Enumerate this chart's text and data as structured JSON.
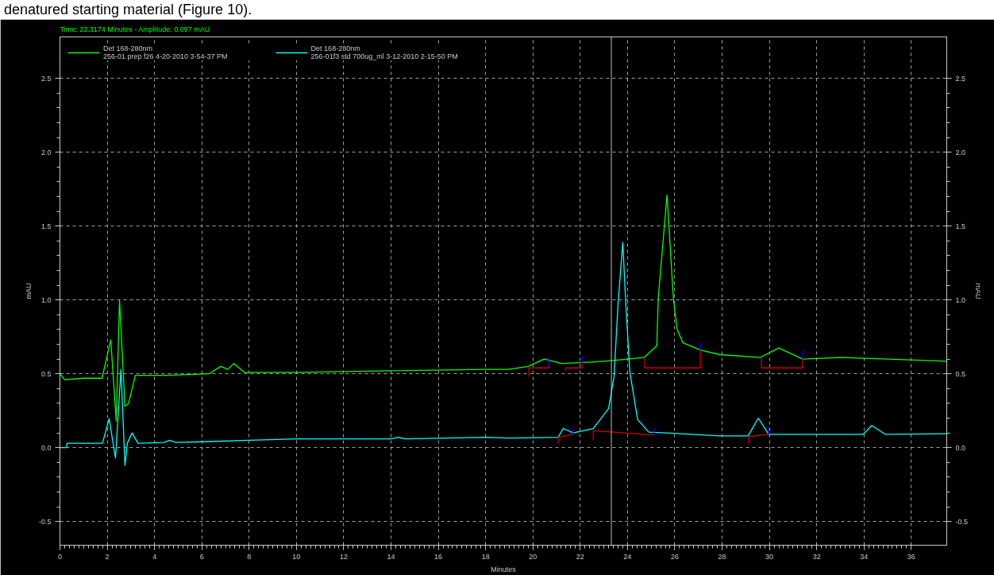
{
  "chart_data": {
    "type": "line",
    "annotations": [
      "denatured starting material (Figure 10).",
      "Time:  23.3174 Minutes - Amplitude:  0.097 mAU"
    ],
    "xlabel": "Minutes",
    "ylabel": "mAU",
    "y2label": "mAU",
    "xlim": [
      0,
      37.5
    ],
    "ylim": [
      -0.66,
      2.78
    ],
    "y2lim": [
      -0.66,
      2.78
    ],
    "xticks": [
      0,
      2,
      4,
      6,
      8,
      10,
      12,
      14,
      16,
      18,
      20,
      22,
      24,
      26,
      28,
      30,
      32,
      34,
      36
    ],
    "yticks": [
      -0.5,
      {
        "value": 0,
        "label": "0.0"
      },
      0.5,
      {
        "value": 1,
        "label": "1.0"
      },
      1.5,
      {
        "value": 2,
        "label": "2.0"
      },
      2.5
    ],
    "y2ticks": [
      -0.5,
      {
        "value": 0,
        "label": "0.0"
      },
      0.5,
      {
        "value": 1,
        "label": "1.0"
      },
      1.5,
      {
        "value": 2,
        "label": "2.0"
      },
      2.5
    ],
    "grid": true,
    "legend": "top left",
    "line_style": "solid",
    "ref_lines": [
      {
        "axis": "x",
        "value": 23.3174,
        "color": "#c0c0c0"
      }
    ],
    "series": [
      {
        "name": "Det 168-280nm\n256-01 prep f26 4-20-2010 3-54-37 PM",
        "color": "#00ff00",
        "x": [
          0,
          0.2,
          1.0,
          1.78,
          2.15,
          2.38,
          2.52,
          2.75,
          2.9,
          3.19,
          4.5,
          6.3,
          6.8,
          7.1,
          7.35,
          7.8,
          10,
          14,
          18,
          18.96,
          19.8,
          20.47,
          21.2,
          22.5,
          23.4,
          24.7,
          25.24,
          25.3,
          25.67,
          25.94,
          26.1,
          26.34,
          27.1,
          27.9,
          29.6,
          30.4,
          31.4,
          33.05,
          35,
          37.5
        ],
        "values": [
          0.5,
          0.46,
          0.47,
          0.47,
          0.73,
          0.18,
          1.0,
          0.28,
          0.3,
          0.49,
          0.49,
          0.5,
          0.55,
          0.53,
          0.57,
          0.51,
          0.51,
          0.52,
          0.53,
          0.53,
          0.55,
          0.6,
          0.57,
          0.58,
          0.59,
          0.61,
          0.69,
          1.01,
          1.71,
          1.01,
          0.8,
          0.71,
          0.66,
          0.63,
          0.61,
          0.675,
          0.6,
          0.61,
          0.6,
          0.585
        ]
      },
      {
        "name": "Det 168-280nm\n256-01f3 std 700ug_ml 3-12-2010 2-15-50 PM",
        "color": "#00ffff",
        "x": [
          0,
          0.28,
          0.3,
          1.8,
          2.08,
          2.35,
          2.58,
          2.75,
          2.85,
          3.05,
          3.3,
          4.4,
          4.64,
          4.9,
          6,
          8,
          10,
          14,
          14.3,
          14.6,
          18,
          18.96,
          21.07,
          21.28,
          21.7,
          22.55,
          23.2,
          23.43,
          23.6,
          23.8,
          23.93,
          24.1,
          24.43,
          24.9,
          25.67,
          27.9,
          29.1,
          29.53,
          29.97,
          31.04,
          33.96,
          34.33,
          34.9,
          37.5
        ],
        "values": [
          0.0,
          0.0,
          0.03,
          0.03,
          0.197,
          -0.07,
          0.53,
          -0.12,
          0.03,
          0.1,
          0.03,
          0.035,
          0.05,
          0.035,
          0.04,
          0.05,
          0.06,
          0.06,
          0.07,
          0.06,
          0.07,
          0.065,
          0.07,
          0.13,
          0.1,
          0.13,
          0.265,
          0.48,
          0.97,
          1.39,
          0.97,
          0.51,
          0.19,
          0.105,
          0.1,
          0.08,
          0.08,
          0.2,
          0.09,
          0.09,
          0.09,
          0.15,
          0.09,
          0.095
        ]
      },
      {
        "color": "#cc0000",
        "x": [
          19.83,
          19.83,
          20.67,
          20.67,
          null,
          21.38,
          21.38,
          22.08,
          22.08,
          null,
          24.73,
          24.73,
          27.08,
          27.08,
          null,
          29.66,
          29.66,
          31.41,
          31.41,
          null,
          21.07,
          21.07,
          21.7,
          null,
          22.55,
          22.55,
          25.13,
          null,
          29.13,
          29.13,
          29.97
        ],
        "values": [
          0.48,
          0.54,
          0.54,
          0.56,
          null,
          0.52,
          0.54,
          0.54,
          0.57,
          null,
          0.61,
          0.54,
          0.54,
          0.66,
          null,
          0.61,
          0.54,
          0.54,
          0.6,
          null,
          0.027,
          0.07,
          0.09,
          null,
          0.05,
          0.115,
          0.085,
          null,
          0.027,
          0.075,
          0.09
        ]
      },
      {
        "color": "#0000ff",
        "x": [
          20.67,
          20.67,
          null,
          22.08,
          22.08,
          null,
          27.08,
          27.08,
          null,
          31.41,
          31.41,
          null,
          21.7,
          21.7,
          null,
          25.13,
          25.13,
          null,
          29.97,
          29.97
        ],
        "values": [
          0.56,
          0.61,
          null,
          0.57,
          0.62,
          null,
          0.66,
          0.71,
          null,
          0.6,
          0.66,
          null,
          0.09,
          0.14,
          null,
          0.085,
          0.135,
          null,
          0.09,
          0.14
        ]
      }
    ]
  }
}
